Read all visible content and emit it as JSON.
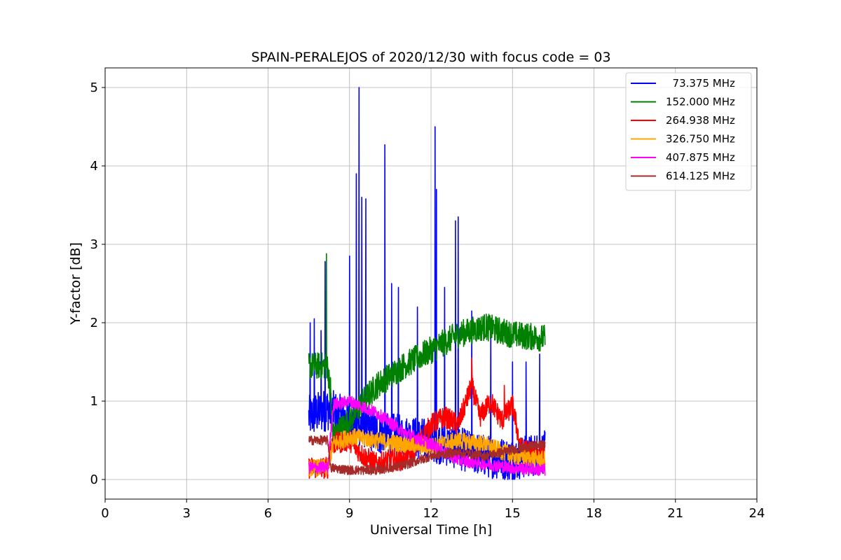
{
  "chart_data": {
    "type": "line",
    "title": "SPAIN-PERALEJOS of 2020/12/30 with focus code = 03",
    "xlabel": "Universal Time [h]",
    "ylabel": "Y-factor [dB]",
    "xlim": [
      0,
      24
    ],
    "ylim": [
      -0.25,
      5.25
    ],
    "xticks": [
      0,
      3,
      6,
      9,
      12,
      15,
      18,
      21,
      24
    ],
    "yticks": [
      0,
      1,
      2,
      3,
      4,
      5
    ],
    "grid": true,
    "legend_position": "top-right",
    "series": [
      {
        "name": "  73.375 MHz",
        "color": "#0000ff",
        "base": [
          [
            7.5,
            0.8
          ],
          [
            8.2,
            0.9
          ],
          [
            9.0,
            0.75
          ],
          [
            10.0,
            0.6
          ],
          [
            11.0,
            0.55
          ],
          [
            12.0,
            0.5
          ],
          [
            13.0,
            0.4
          ],
          [
            14.0,
            0.3
          ],
          [
            15.0,
            0.25
          ],
          [
            16.2,
            0.35
          ]
        ],
        "noise": 0.55,
        "spikes": [
          [
            7.55,
            2.0
          ],
          [
            7.7,
            2.05
          ],
          [
            7.95,
            1.9
          ],
          [
            8.1,
            2.78
          ],
          [
            9.0,
            2.85
          ],
          [
            9.25,
            3.9
          ],
          [
            9.35,
            5.0
          ],
          [
            9.45,
            3.6
          ],
          [
            9.6,
            3.58
          ],
          [
            10.3,
            4.27
          ],
          [
            10.55,
            2.5
          ],
          [
            10.8,
            2.45
          ],
          [
            11.5,
            2.2
          ],
          [
            12.15,
            4.5
          ],
          [
            12.2,
            3.7
          ],
          [
            12.5,
            2.45
          ],
          [
            12.9,
            3.3
          ],
          [
            13.0,
            3.35
          ],
          [
            13.5,
            2.15
          ],
          [
            14.2,
            1.95
          ],
          [
            15.0,
            1.5
          ],
          [
            15.5,
            1.5
          ],
          [
            16.0,
            1.6
          ]
        ]
      },
      {
        "name": "152.000 MHz",
        "color": "#008000",
        "base": [
          [
            7.5,
            1.45
          ],
          [
            8.2,
            1.45
          ],
          [
            8.4,
            0.55
          ],
          [
            9.0,
            0.75
          ],
          [
            9.5,
            1.0
          ],
          [
            10.0,
            1.2
          ],
          [
            11.0,
            1.45
          ],
          [
            12.0,
            1.65
          ],
          [
            13.0,
            1.85
          ],
          [
            14.0,
            1.95
          ],
          [
            15.0,
            1.85
          ],
          [
            16.2,
            1.8
          ]
        ],
        "noise": 0.35,
        "spikes": [
          [
            8.15,
            2.88
          ],
          [
            8.3,
            1.3
          ]
        ]
      },
      {
        "name": "264.938 MHz",
        "color": "#ff0000",
        "base": [
          [
            7.5,
            0.15
          ],
          [
            8.2,
            0.15
          ],
          [
            8.3,
            0.45
          ],
          [
            9.0,
            0.5
          ],
          [
            9.5,
            0.3
          ],
          [
            10.0,
            0.2
          ],
          [
            10.5,
            0.25
          ],
          [
            11.0,
            0.25
          ],
          [
            11.5,
            0.45
          ],
          [
            12.0,
            0.7
          ],
          [
            12.5,
            0.8
          ],
          [
            13.0,
            0.7
          ],
          [
            13.5,
            1.2
          ],
          [
            13.8,
            0.8
          ],
          [
            14.2,
            1.0
          ],
          [
            14.6,
            0.75
          ],
          [
            15.0,
            0.95
          ],
          [
            15.3,
            0.4
          ],
          [
            16.2,
            0.3
          ]
        ],
        "noise": 0.28,
        "spikes": [
          [
            13.5,
            1.55
          ],
          [
            14.7,
            1.2
          ]
        ]
      },
      {
        "name": "326.750 MHz",
        "color": "#ffa500",
        "base": [
          [
            7.5,
            0.15
          ],
          [
            8.2,
            0.15
          ],
          [
            8.4,
            0.45
          ],
          [
            9.0,
            0.55
          ],
          [
            10.0,
            0.5
          ],
          [
            11.0,
            0.45
          ],
          [
            12.0,
            0.42
          ],
          [
            13.0,
            0.5
          ],
          [
            14.0,
            0.45
          ],
          [
            15.0,
            0.3
          ],
          [
            16.2,
            0.25
          ]
        ],
        "noise": 0.22,
        "spikes": []
      },
      {
        "name": "407.875 MHz",
        "color": "#ff00ff",
        "base": [
          [
            7.5,
            0.15
          ],
          [
            8.2,
            0.15
          ],
          [
            8.4,
            0.95
          ],
          [
            9.0,
            1.0
          ],
          [
            10.0,
            0.85
          ],
          [
            11.0,
            0.6
          ],
          [
            12.0,
            0.45
          ],
          [
            13.0,
            0.25
          ],
          [
            14.0,
            0.2
          ],
          [
            15.0,
            0.15
          ],
          [
            16.2,
            0.12
          ]
        ],
        "noise": 0.16,
        "spikes": []
      },
      {
        "name": "614.125 MHz",
        "color": "#a52a2a",
        "base": [
          [
            7.5,
            0.5
          ],
          [
            8.2,
            0.5
          ],
          [
            8.3,
            0.15
          ],
          [
            9.0,
            0.12
          ],
          [
            10.0,
            0.12
          ],
          [
            11.0,
            0.18
          ],
          [
            12.0,
            0.3
          ],
          [
            13.0,
            0.35
          ],
          [
            14.0,
            0.3
          ],
          [
            15.0,
            0.38
          ],
          [
            16.2,
            0.45
          ]
        ],
        "noise": 0.12,
        "spikes": []
      }
    ]
  }
}
